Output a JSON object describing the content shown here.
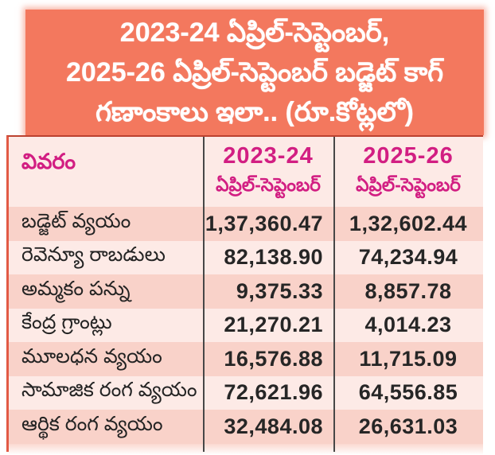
{
  "title": {
    "lines": [
      "2023-24 ఏప్రిల్-సెప్టెంబర్,",
      "2025-26 ఏప్రిల్-సెప్టెంబర్ బడ్జెట్ కాగ్",
      "గణాంకాలు ఇలా.. (రూ.కోట్లలో)"
    ]
  },
  "table": {
    "header": {
      "col1": "వివరం",
      "col2_year": "2023-24",
      "col2_period": "ఏప్రిల్-సెప్టెంబర్",
      "col3_year": "2025-26",
      "col3_period": "ఏప్రిల్-సెప్టెంబర్"
    },
    "rows": [
      {
        "label": "బడ్జెట్ వ్యయం",
        "v2023": "1,37,360.47",
        "v2025": "1,32,602.44"
      },
      {
        "label": "రెవెన్యూ రాబడులు",
        "v2023": "82,138.90",
        "v2025": "74,234.94"
      },
      {
        "label": "అమ్మకం పన్ను",
        "v2023": "9,375.33",
        "v2025": "8,857.78"
      },
      {
        "label": "కేంద్ర గ్రాంట్లు",
        "v2023": "21,270.21",
        "v2025": "4,014.23"
      },
      {
        "label": "మూలధన వ్యయం",
        "v2023": "16,576.88",
        "v2025": "11,715.09"
      },
      {
        "label": "సామాజిక రంగ వ్యయం",
        "v2023": "72,621.96",
        "v2025": "64,556.85"
      },
      {
        "label": "ఆర్థిక రంగ వ్యయం",
        "v2023": "32,484.08",
        "v2025": "26,631.03"
      }
    ]
  },
  "colors": {
    "title_background": "#f3785e",
    "title_text": "#ffffff",
    "header_text_magenta": "#d21e82",
    "row_light": "#fdeae6",
    "row_dark": "#f9d2c9",
    "number_text": "#262626",
    "divider_line": "#474747",
    "table_top_border": "#bc4230",
    "table_left_border": "#e25a45"
  },
  "chart_data": {
    "type": "table",
    "title": "2023-24 ఏప్రిల్-సెప్టెంబర్, 2025-26 ఏప్రిల్-సెప్టెంబర్ బడ్జెట్ కాగ్ గణాంకాలు ఇలా.. (రూ.కోట్లలో)",
    "units": "రూ.కోట్లలో",
    "columns": [
      "వివరం",
      "2023-24 ఏప్రిల్-సెప్టెంబర్",
      "2025-26 ఏప్రిల్-సెప్టెంబర్"
    ],
    "categories": [
      "బడ్జెట్ వ్యయం",
      "రెవెన్యూ రాబడులు",
      "అమ్మకం పన్ను",
      "కేంద్ర గ్రాంట్లు",
      "మూలధన వ్యయం",
      "సామాజిక రంగ వ్యయం",
      "ఆర్థిక రంగ వ్యయం"
    ],
    "series": [
      {
        "name": "2023-24 ఏప్రిల్-సెప్టెంబర్",
        "values": [
          137360.47,
          82138.9,
          9375.33,
          21270.21,
          16576.88,
          72621.96,
          32484.08
        ]
      },
      {
        "name": "2025-26 ఏప్రిల్-సెప్టెంబర్",
        "values": [
          132602.44,
          74234.94,
          8857.78,
          4014.23,
          11715.09,
          64556.85,
          26631.03
        ]
      }
    ]
  }
}
